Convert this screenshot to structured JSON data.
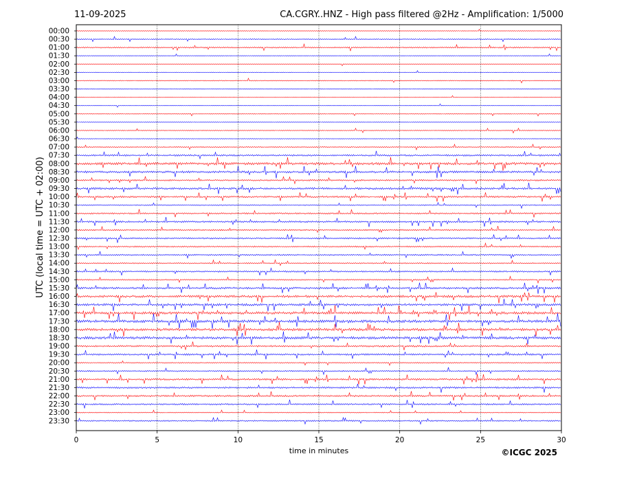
{
  "header": {
    "date": "11-09-2025",
    "title": "CA.CGRY..HNZ - High pass filtered @2Hz - Amplification: 1/5000"
  },
  "footer": {
    "copyright": "©ICGC 2025"
  },
  "chart_data": {
    "type": "line",
    "title": "CA.CGRY..HNZ - High pass filtered @2Hz - Amplification: 1/5000",
    "xlabel": "time in minutes",
    "ylabel": "UTC (local time = UTC + 02:00)",
    "xlim": [
      0,
      30
    ],
    "x_ticks": [
      "0",
      "5",
      "10",
      "15",
      "20",
      "25",
      "30"
    ],
    "vertical_gridlines_at": [
      5,
      10,
      15,
      20,
      25
    ],
    "row_labels": [
      "00:00",
      "00:30",
      "01:00",
      "01:30",
      "02:00",
      "02:30",
      "03:00",
      "03:30",
      "04:00",
      "04:30",
      "05:00",
      "05:30",
      "06:00",
      "06:30",
      "07:00",
      "07:30",
      "08:00",
      "08:30",
      "09:00",
      "09:30",
      "10:00",
      "10:30",
      "11:00",
      "11:30",
      "12:00",
      "12:30",
      "13:00",
      "13:30",
      "14:00",
      "14:30",
      "15:00",
      "15:30",
      "16:00",
      "16:30",
      "17:00",
      "17:30",
      "18:00",
      "18:30",
      "19:00",
      "19:30",
      "20:00",
      "20:30",
      "21:00",
      "21:30",
      "22:00",
      "22:30",
      "23:00",
      "23:30"
    ],
    "trace_colors": [
      "#ff0000",
      "#0000ff"
    ],
    "activity_levels": [
      0.05,
      0.2,
      0.35,
      0.04,
      0.02,
      0.02,
      0.15,
      0.1,
      0.02,
      0.02,
      0.08,
      0.03,
      0.15,
      0.03,
      0.25,
      0.55,
      0.9,
      0.75,
      0.45,
      0.7,
      0.55,
      0.25,
      0.45,
      0.55,
      0.4,
      0.45,
      0.4,
      0.4,
      0.3,
      0.45,
      0.3,
      0.65,
      0.85,
      0.8,
      0.95,
      1.0,
      0.95,
      0.95,
      0.55,
      0.55,
      0.25,
      0.35,
      0.6,
      0.55,
      0.55,
      0.45,
      0.15,
      0.35
    ],
    "grid": true
  }
}
